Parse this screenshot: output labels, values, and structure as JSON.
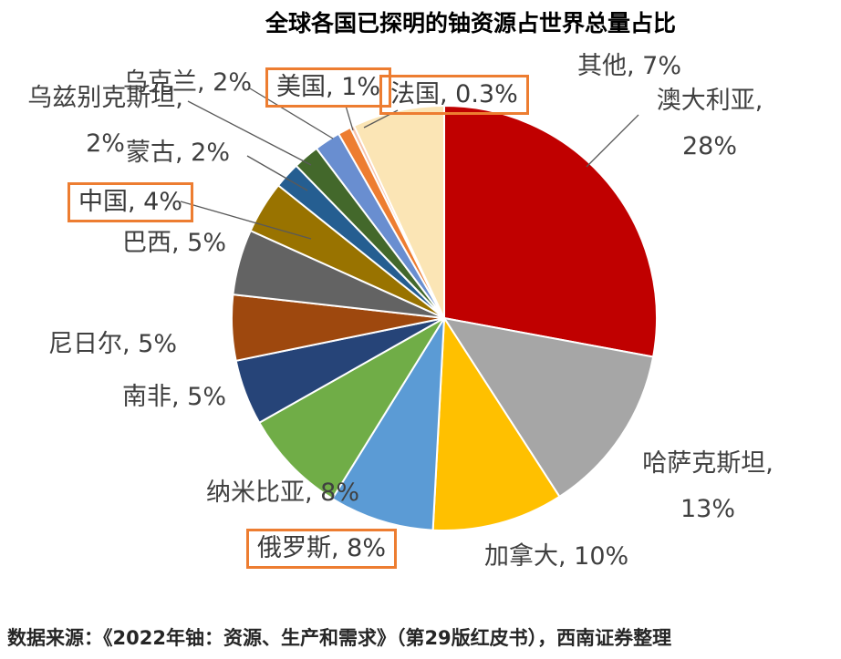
{
  "page": {
    "background": "#FFFFFF"
  },
  "source": "数据来源：《2022年铀：资源、生产和需求》（第29版红皮书），西南证券整理",
  "chart_data": {
    "type": "pie",
    "title": "全球各国已探明的铀资源占世界总量占比",
    "unit": "%",
    "start_angle_deg": 0,
    "direction": "clockwise",
    "legend": "none",
    "highlight_box_color": "#ED7D31",
    "slice_border_color": "#FFFFFF",
    "slices": [
      {
        "name": "澳大利亚",
        "value": 28,
        "color": "#C00000",
        "boxed": false,
        "lines": [
          "澳大利亚,",
          "28%"
        ]
      },
      {
        "name": "哈萨克斯坦",
        "value": 13,
        "color": "#A6A6A6",
        "boxed": false,
        "lines": [
          "哈萨克斯坦,",
          "13%"
        ]
      },
      {
        "name": "加拿大",
        "value": 10,
        "color": "#FFC000",
        "boxed": false,
        "lines": [
          "加拿大, 10%"
        ]
      },
      {
        "name": "俄罗斯",
        "value": 8,
        "color": "#5B9BD5",
        "boxed": true,
        "lines": [
          "俄罗斯, 8%"
        ]
      },
      {
        "name": "纳米比亚",
        "value": 8,
        "color": "#70AD47",
        "boxed": false,
        "lines": [
          "纳米比亚, 8%"
        ]
      },
      {
        "name": "南非",
        "value": 5,
        "color": "#264478",
        "boxed": false,
        "lines": [
          "南非, 5%"
        ]
      },
      {
        "name": "尼日尔",
        "value": 5,
        "color": "#9E480E",
        "boxed": false,
        "lines": [
          "尼日尔, 5%"
        ]
      },
      {
        "name": "巴西",
        "value": 5,
        "color": "#636363",
        "boxed": false,
        "lines": [
          "巴西, 5%"
        ]
      },
      {
        "name": "中国",
        "value": 4,
        "color": "#997300",
        "boxed": true,
        "lines": [
          "中国, 4%"
        ]
      },
      {
        "name": "蒙古",
        "value": 2,
        "color": "#255E91",
        "boxed": false,
        "lines": [
          "蒙古, 2%"
        ]
      },
      {
        "name": "乌兹别克斯坦",
        "value": 2,
        "color": "#43682B",
        "boxed": false,
        "lines": [
          "乌兹别克斯坦,",
          "2%"
        ]
      },
      {
        "name": "乌克兰",
        "value": 2,
        "color": "#698ED0",
        "boxed": false,
        "lines": [
          "乌克兰, 2%"
        ]
      },
      {
        "name": "美国",
        "value": 1,
        "color": "#ED7D31",
        "boxed": true,
        "lines": [
          "美国, 1%"
        ]
      },
      {
        "name": "法国",
        "value": 0.3,
        "color": "#F6C3AC",
        "boxed": true,
        "lines": [
          "法国, 0.3%"
        ]
      },
      {
        "name": "其他",
        "value": 7,
        "color": "#FBE5B5",
        "boxed": false,
        "lines": [
          "其他, 7%"
        ]
      }
    ]
  }
}
